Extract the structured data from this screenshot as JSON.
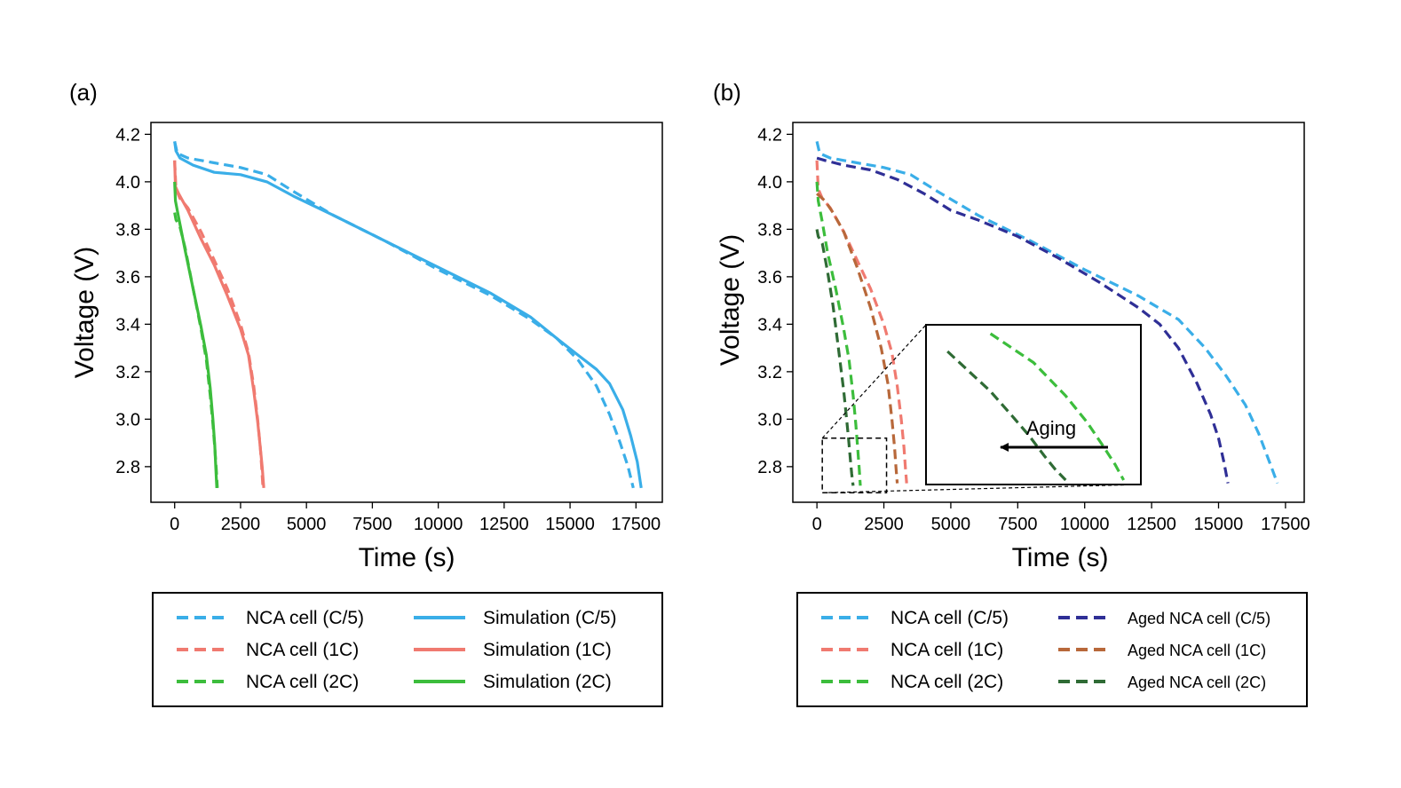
{
  "colors": {
    "cp5": "#3aaee8",
    "c1": "#f07a70",
    "c2": "#3cbd3c",
    "aged_cp5": "#2f2f96",
    "aged_c1": "#b8683a",
    "aged_c2": "#2f6b35"
  },
  "chart_data": [
    {
      "id": "a",
      "type": "line",
      "panel_label": "(a)",
      "xlabel": "Time (s)",
      "ylabel": "Voltage (V)",
      "xlim": [
        -900,
        18500
      ],
      "ylim": [
        2.65,
        4.25
      ],
      "xticks": [
        0,
        2500,
        5000,
        7500,
        10000,
        12500,
        15000,
        17500
      ],
      "xtick_labels": [
        "0",
        "2500",
        "5000",
        "7500",
        "10000",
        "12500",
        "15000",
        "17500"
      ],
      "yticks": [
        2.8,
        3.0,
        3.2,
        3.4,
        3.6,
        3.8,
        4.0,
        4.2
      ],
      "ytick_labels": [
        "2.8",
        "3.0",
        "3.2",
        "3.4",
        "3.6",
        "3.8",
        "4.0",
        "4.2"
      ],
      "series": [
        {
          "name": "NCA cell (C/5)",
          "style": "dashed",
          "color_key": "cp5",
          "x": [
            0,
            100,
            500,
            1500,
            2500,
            3500,
            4500,
            6000,
            8000,
            10000,
            12000,
            13500,
            14500,
            15300,
            16000,
            16500,
            16900,
            17200,
            17400
          ],
          "y": [
            4.17,
            4.12,
            4.1,
            4.08,
            4.06,
            4.03,
            3.96,
            3.86,
            3.75,
            3.63,
            3.52,
            3.42,
            3.34,
            3.25,
            3.14,
            3.02,
            2.9,
            2.8,
            2.71
          ]
        },
        {
          "name": "NCA cell (1C)",
          "style": "dashed",
          "color_key": "c1",
          "x": [
            0,
            50,
            200,
            500,
            1000,
            1500,
            2000,
            2500,
            2800,
            3000,
            3150,
            3250,
            3300,
            3350
          ],
          "y": [
            4.09,
            3.97,
            3.93,
            3.89,
            3.79,
            3.67,
            3.55,
            3.4,
            3.28,
            3.14,
            3.0,
            2.88,
            2.8,
            2.71
          ]
        },
        {
          "name": "NCA cell (2C)",
          "style": "dashed",
          "color_key": "c2",
          "x": [
            0,
            50,
            200,
            400,
            700,
            1000,
            1200,
            1350,
            1450,
            1520,
            1580,
            1620
          ],
          "y": [
            3.87,
            3.84,
            3.81,
            3.72,
            3.55,
            3.38,
            3.25,
            3.1,
            2.98,
            2.88,
            2.79,
            2.71
          ]
        },
        {
          "name": "Simulation (C/5)",
          "style": "solid",
          "color_key": "cp5",
          "x": [
            0,
            50,
            200,
            700,
            1500,
            2500,
            3500,
            4500,
            6000,
            8000,
            10000,
            12000,
            13500,
            14500,
            15300,
            16000,
            16500,
            17000,
            17300,
            17550,
            17700
          ],
          "y": [
            4.17,
            4.13,
            4.1,
            4.07,
            4.04,
            4.03,
            4.0,
            3.94,
            3.86,
            3.75,
            3.64,
            3.53,
            3.43,
            3.34,
            3.27,
            3.21,
            3.15,
            3.04,
            2.93,
            2.82,
            2.71
          ]
        },
        {
          "name": "Simulation (1C)",
          "style": "solid",
          "color_key": "c1",
          "x": [
            0,
            30,
            150,
            500,
            1000,
            1500,
            2000,
            2500,
            2800,
            3000,
            3150,
            3250,
            3320,
            3380
          ],
          "y": [
            4.09,
            3.98,
            3.95,
            3.88,
            3.76,
            3.65,
            3.52,
            3.38,
            3.27,
            3.12,
            2.99,
            2.88,
            2.8,
            2.71
          ]
        },
        {
          "name": "Simulation (2C)",
          "style": "solid",
          "color_key": "c2",
          "x": [
            0,
            30,
            150,
            400,
            700,
            1000,
            1200,
            1350,
            1450,
            1520,
            1560,
            1600
          ],
          "y": [
            4.0,
            3.92,
            3.85,
            3.71,
            3.55,
            3.39,
            3.27,
            3.13,
            3.0,
            2.89,
            2.8,
            2.71
          ]
        }
      ],
      "legend": {
        "position": "below",
        "entries": [
          {
            "label": "NCA cell (C/5)",
            "style": "dashed",
            "color_key": "cp5"
          },
          {
            "label": "Simulation (C/5)",
            "style": "solid",
            "color_key": "cp5"
          },
          {
            "label": "NCA cell (1C)",
            "style": "dashed",
            "color_key": "c1"
          },
          {
            "label": "Simulation (1C)",
            "style": "solid",
            "color_key": "c1"
          },
          {
            "label": "NCA cell (2C)",
            "style": "dashed",
            "color_key": "c2"
          },
          {
            "label": "Simulation (2C)",
            "style": "solid",
            "color_key": "c2"
          }
        ]
      }
    },
    {
      "id": "b",
      "type": "line",
      "panel_label": "(b)",
      "xlabel": "Time (s)",
      "ylabel": "Voltage (V)",
      "xlim": [
        -900,
        18200
      ],
      "ylim": [
        2.65,
        4.25
      ],
      "xticks": [
        0,
        2500,
        5000,
        7500,
        10000,
        12500,
        15000,
        17500
      ],
      "xtick_labels": [
        "0",
        "2500",
        "5000",
        "7500",
        "10000",
        "12500",
        "15000",
        "17500"
      ],
      "yticks": [
        2.8,
        3.0,
        3.2,
        3.4,
        3.6,
        3.8,
        4.0,
        4.2
      ],
      "ytick_labels": [
        "2.8",
        "3.0",
        "3.2",
        "3.4",
        "3.6",
        "3.8",
        "4.0",
        "4.2"
      ],
      "series": [
        {
          "name": "NCA cell (C/5)",
          "style": "dashed",
          "color_key": "cp5",
          "x": [
            0,
            100,
            500,
            1500,
            2500,
            3500,
            4500,
            6000,
            8000,
            10000,
            12000,
            13500,
            14500,
            15300,
            16000,
            16500,
            16900,
            17200
          ],
          "y": [
            4.17,
            4.12,
            4.1,
            4.08,
            4.06,
            4.03,
            3.96,
            3.86,
            3.75,
            3.63,
            3.52,
            3.42,
            3.3,
            3.18,
            3.06,
            2.94,
            2.82,
            2.73
          ]
        },
        {
          "name": "NCA cell (1C)",
          "style": "dashed",
          "color_key": "c1",
          "x": [
            0,
            50,
            200,
            500,
            1000,
            1500,
            2000,
            2500,
            2800,
            3000,
            3150,
            3250,
            3300,
            3350
          ],
          "y": [
            4.09,
            3.97,
            3.93,
            3.89,
            3.79,
            3.67,
            3.55,
            3.4,
            3.28,
            3.14,
            3.0,
            2.88,
            2.8,
            2.73
          ]
        },
        {
          "name": "NCA cell (2C)",
          "style": "dashed",
          "color_key": "c2",
          "x": [
            0,
            50,
            200,
            400,
            700,
            1000,
            1200,
            1350,
            1450,
            1520,
            1580,
            1620
          ],
          "y": [
            4.0,
            3.92,
            3.83,
            3.7,
            3.55,
            3.38,
            3.25,
            3.1,
            2.98,
            2.88,
            2.79,
            2.72
          ]
        },
        {
          "name": "Aged NCA cell (C/5)",
          "style": "dashed",
          "color_key": "aged_cp5",
          "x": [
            0,
            300,
            1000,
            2000,
            3000,
            4000,
            5000,
            6000,
            7500,
            9000,
            10500,
            12000,
            12800,
            13500,
            14200,
            14700,
            15000,
            15200,
            15350
          ],
          "y": [
            4.1,
            4.09,
            4.07,
            4.05,
            4.01,
            3.95,
            3.88,
            3.84,
            3.77,
            3.68,
            3.58,
            3.47,
            3.4,
            3.3,
            3.15,
            3.02,
            2.92,
            2.82,
            2.73
          ]
        },
        {
          "name": "Aged NCA cell (1C)",
          "style": "dashed",
          "color_key": "aged_c1",
          "x": [
            0,
            100,
            300,
            600,
            1000,
            1500,
            2000,
            2400,
            2650,
            2800,
            2900,
            2950,
            3000
          ],
          "y": [
            3.95,
            3.94,
            3.92,
            3.87,
            3.79,
            3.64,
            3.47,
            3.3,
            3.15,
            3.0,
            2.88,
            2.8,
            2.73
          ]
        },
        {
          "name": "Aged NCA cell (2C)",
          "style": "dashed",
          "color_key": "aged_c2",
          "x": [
            0,
            50,
            200,
            400,
            600,
            800,
            1000,
            1100,
            1180,
            1250,
            1300,
            1350
          ],
          "y": [
            3.8,
            3.77,
            3.74,
            3.62,
            3.48,
            3.3,
            3.12,
            3.01,
            2.92,
            2.83,
            2.77,
            2.72
          ]
        }
      ],
      "legend": {
        "position": "below",
        "entries": [
          {
            "label": "NCA cell (C/5)",
            "style": "dashed",
            "color_key": "cp5"
          },
          {
            "label": "Aged NCA cell (C/5)",
            "style": "dashed",
            "color_key": "aged_cp5"
          },
          {
            "label": "NCA cell (1C)",
            "style": "dashed",
            "color_key": "c1"
          },
          {
            "label": "Aged NCA cell (1C)",
            "style": "dashed",
            "color_key": "aged_c1"
          },
          {
            "label": "NCA cell (2C)",
            "style": "dashed",
            "color_key": "c2"
          },
          {
            "label": "Aged NCA cell (2C)",
            "style": "dashed",
            "color_key": "aged_c2"
          }
        ]
      },
      "inset": {
        "annotation": "Aging",
        "zoom_region": {
          "x": [
            200,
            2600
          ],
          "y": [
            2.69,
            2.92
          ]
        },
        "series": [
          "Aged NCA cell (2C)",
          "NCA cell (2C)"
        ]
      }
    }
  ]
}
